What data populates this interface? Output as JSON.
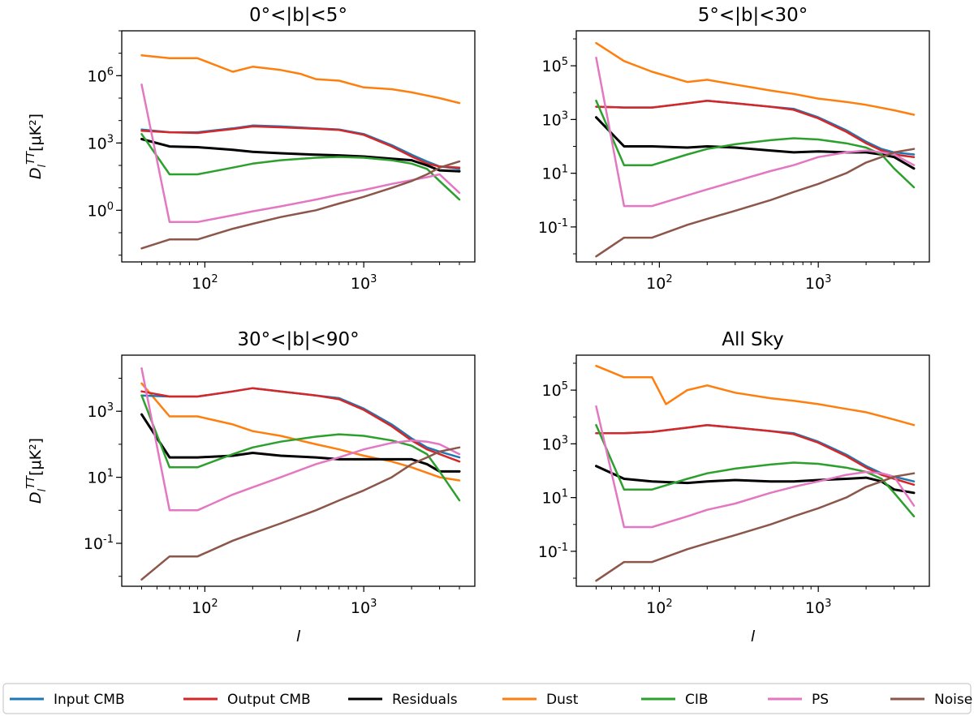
{
  "legend": [
    {
      "label": "Input CMB",
      "color": "#1f77b4"
    },
    {
      "label": "Output CMB",
      "color": "#d62728"
    },
    {
      "label": "Residuals",
      "color": "#000000"
    },
    {
      "label": "Dust",
      "color": "#ff7f0e"
    },
    {
      "label": "CIB",
      "color": "#2ca02c"
    },
    {
      "label": "PS",
      "color": "#e377c2"
    },
    {
      "label": "Noise",
      "color": "#8c564b"
    }
  ],
  "chart_data": [
    {
      "type": "line",
      "title": "0$^\\circ$<|b|<5$^\\circ$",
      "title_display": "0°<|b|<5°",
      "xlabel": "",
      "ylabel": "D_l^TT [μK²]",
      "xscale": "log",
      "yscale": "log",
      "xlim": [
        30,
        5000
      ],
      "ylim": [
        0.005,
        100000000
      ],
      "xticks": [
        {
          "v": 100,
          "label": "10^2"
        },
        {
          "v": 1000,
          "label": "10^3"
        }
      ],
      "yticks": [
        {
          "v": 1,
          "label": "10^0"
        },
        {
          "v": 1000,
          "label": "10^3"
        },
        {
          "v": 1000000,
          "label": "10^6"
        }
      ],
      "series": [
        {
          "name": "Dust",
          "x": [
            40,
            60,
            90,
            150,
            200,
            300,
            400,
            500,
            700,
            1000,
            1500,
            2000,
            2500,
            3000,
            4000
          ],
          "y": [
            8000000,
            6000000,
            6000000,
            1500000,
            2500000,
            1800000,
            1200000,
            700000,
            600000,
            300000,
            250000,
            180000,
            130000,
            100000,
            60000
          ]
        },
        {
          "name": "Input CMB",
          "x": [
            40,
            60,
            90,
            150,
            200,
            300,
            500,
            700,
            1000,
            1500,
            2000,
            2500,
            3000,
            4000
          ],
          "y": [
            4000,
            3000,
            3000,
            4500,
            6000,
            5500,
            4500,
            4000,
            2500,
            800,
            300,
            150,
            90,
            70
          ]
        },
        {
          "name": "Output CMB",
          "x": [
            40,
            60,
            90,
            150,
            200,
            300,
            500,
            700,
            1000,
            1500,
            2000,
            2500,
            3000,
            4000
          ],
          "y": [
            3500,
            3000,
            2800,
            4200,
            5500,
            5000,
            4300,
            3800,
            2300,
            700,
            250,
            120,
            90,
            80
          ]
        },
        {
          "name": "Residuals",
          "x": [
            40,
            60,
            90,
            150,
            200,
            300,
            500,
            700,
            1000,
            1500,
            2000,
            2500,
            3000,
            4000
          ],
          "y": [
            1500,
            700,
            650,
            500,
            400,
            350,
            300,
            280,
            250,
            200,
            170,
            100,
            60,
            55
          ]
        },
        {
          "name": "CIB",
          "x": [
            40,
            60,
            90,
            150,
            200,
            300,
            500,
            700,
            1000,
            1500,
            2000,
            2500,
            3000,
            4000
          ],
          "y": [
            2500,
            40,
            40,
            80,
            120,
            170,
            220,
            240,
            220,
            170,
            120,
            70,
            20,
            3
          ]
        },
        {
          "name": "PS",
          "x": [
            40,
            60,
            90,
            150,
            200,
            300,
            500,
            700,
            1000,
            1500,
            2000,
            2500,
            3000,
            4000
          ],
          "y": [
            400000,
            0.3,
            0.3,
            0.6,
            0.9,
            1.5,
            3,
            5,
            8,
            15,
            22,
            30,
            40,
            6
          ]
        },
        {
          "name": "Noise",
          "x": [
            40,
            60,
            90,
            150,
            200,
            300,
            500,
            700,
            1000,
            1500,
            2000,
            2500,
            3000,
            4000
          ],
          "y": [
            0.02,
            0.05,
            0.05,
            0.15,
            0.25,
            0.5,
            1,
            2,
            4,
            10,
            20,
            40,
            80,
            150
          ]
        }
      ]
    },
    {
      "type": "line",
      "title": "5$^\\circ$<|b|<30$^\\circ$",
      "title_display": "5°<|b|<30°",
      "xlabel": "",
      "ylabel": "",
      "xscale": "log",
      "yscale": "log",
      "xlim": [
        30,
        5000
      ],
      "ylim": [
        0.005,
        2000000
      ],
      "xticks": [
        {
          "v": 100,
          "label": "10^2"
        },
        {
          "v": 1000,
          "label": "10^3"
        }
      ],
      "yticks": [
        {
          "v": 0.1,
          "label": "10^-1"
        },
        {
          "v": 10,
          "label": "10^1"
        },
        {
          "v": 1000,
          "label": "10^3"
        },
        {
          "v": 100000,
          "label": "10^5"
        }
      ],
      "series": [
        {
          "name": "Dust",
          "x": [
            40,
            60,
            90,
            150,
            200,
            300,
            400,
            500,
            700,
            1000,
            1500,
            2000,
            3000,
            4000
          ],
          "y": [
            700000,
            150000,
            60000,
            25000,
            30000,
            20000,
            15000,
            12000,
            9000,
            6000,
            4500,
            3500,
            2200,
            1500
          ]
        },
        {
          "name": "Input CMB",
          "x": [
            40,
            60,
            90,
            150,
            200,
            300,
            500,
            700,
            1000,
            1500,
            2000,
            2500,
            3000,
            4000
          ],
          "y": [
            3000,
            2800,
            2800,
            4000,
            5000,
            4000,
            3000,
            2500,
            1200,
            400,
            150,
            80,
            60,
            50
          ]
        },
        {
          "name": "Output CMB",
          "x": [
            40,
            60,
            90,
            150,
            200,
            300,
            500,
            700,
            1000,
            1500,
            2000,
            2500,
            3000,
            4000
          ],
          "y": [
            3000,
            2800,
            2800,
            4000,
            5000,
            4000,
            3000,
            2300,
            1100,
            350,
            130,
            70,
            50,
            40
          ]
        },
        {
          "name": "Residuals",
          "x": [
            40,
            60,
            90,
            150,
            200,
            300,
            500,
            700,
            1000,
            1500,
            2000,
            2500,
            3000,
            4000
          ],
          "y": [
            1200,
            100,
            100,
            90,
            100,
            90,
            70,
            60,
            65,
            60,
            60,
            50,
            40,
            15
          ]
        },
        {
          "name": "CIB",
          "x": [
            40,
            60,
            90,
            150,
            200,
            300,
            500,
            700,
            1000,
            1500,
            2000,
            2500,
            3000,
            4000
          ],
          "y": [
            5000,
            20,
            20,
            50,
            80,
            120,
            170,
            200,
            180,
            130,
            90,
            50,
            15,
            3
          ]
        },
        {
          "name": "PS",
          "x": [
            40,
            60,
            90,
            150,
            200,
            300,
            500,
            700,
            1000,
            1500,
            2000,
            2500,
            3000,
            4000
          ],
          "y": [
            200000,
            0.6,
            0.6,
            1.5,
            2.5,
            5,
            12,
            20,
            40,
            60,
            70,
            60,
            50,
            20
          ]
        },
        {
          "name": "Noise",
          "x": [
            40,
            60,
            90,
            150,
            200,
            300,
            500,
            700,
            1000,
            1500,
            2000,
            2500,
            3000,
            4000
          ],
          "y": [
            0.008,
            0.04,
            0.04,
            0.12,
            0.2,
            0.4,
            1,
            2,
            4,
            10,
            25,
            40,
            60,
            80
          ]
        }
      ]
    },
    {
      "type": "line",
      "title": "30$^\\circ$<|b|<90$^\\circ$",
      "title_display": "30°<|b|<90°",
      "xlabel": "l",
      "ylabel": "D_l^TT [μK²]",
      "xscale": "log",
      "yscale": "log",
      "xlim": [
        30,
        5000
      ],
      "ylim": [
        0.005,
        50000
      ],
      "xticks": [
        {
          "v": 100,
          "label": "10^2"
        },
        {
          "v": 1000,
          "label": "10^3"
        }
      ],
      "yticks": [
        {
          "v": 0.1,
          "label": "10^-1"
        },
        {
          "v": 10,
          "label": "10^1"
        },
        {
          "v": 1000,
          "label": "10^3"
        }
      ],
      "series": [
        {
          "name": "Dust",
          "x": [
            40,
            60,
            90,
            150,
            200,
            300,
            500,
            700,
            1000,
            1500,
            2000,
            3000,
            4000
          ],
          "y": [
            7000,
            700,
            700,
            400,
            250,
            180,
            100,
            70,
            45,
            30,
            20,
            10,
            8
          ]
        },
        {
          "name": "Input CMB",
          "x": [
            40,
            60,
            90,
            150,
            200,
            300,
            500,
            700,
            1000,
            1500,
            2000,
            2500,
            3000,
            4000
          ],
          "y": [
            3000,
            2800,
            2800,
            4000,
            5000,
            4000,
            3000,
            2500,
            1200,
            400,
            150,
            80,
            60,
            40
          ]
        },
        {
          "name": "Output CMB",
          "x": [
            40,
            60,
            90,
            150,
            200,
            300,
            500,
            700,
            1000,
            1500,
            2000,
            2500,
            3000,
            4000
          ],
          "y": [
            4000,
            2800,
            2800,
            4000,
            5000,
            4000,
            3000,
            2300,
            1100,
            350,
            130,
            70,
            50,
            30
          ]
        },
        {
          "name": "Residuals",
          "x": [
            40,
            60,
            90,
            150,
            200,
            300,
            500,
            700,
            1000,
            1500,
            2000,
            2500,
            3000,
            4000
          ],
          "y": [
            800,
            40,
            40,
            45,
            55,
            45,
            40,
            35,
            35,
            35,
            35,
            25,
            15,
            15
          ]
        },
        {
          "name": "CIB",
          "x": [
            40,
            60,
            90,
            150,
            200,
            300,
            500,
            700,
            1000,
            1500,
            2000,
            2500,
            3000,
            4000
          ],
          "y": [
            3000,
            20,
            20,
            50,
            80,
            120,
            170,
            200,
            180,
            130,
            90,
            50,
            15,
            2
          ]
        },
        {
          "name": "PS",
          "x": [
            40,
            60,
            90,
            150,
            200,
            300,
            500,
            700,
            1000,
            1500,
            2000,
            2500,
            3000,
            4000
          ],
          "y": [
            20000,
            1,
            1,
            3,
            5,
            10,
            25,
            40,
            70,
            110,
            130,
            120,
            100,
            50
          ]
        },
        {
          "name": "Noise",
          "x": [
            40,
            60,
            90,
            150,
            200,
            300,
            500,
            700,
            1000,
            1500,
            2000,
            2500,
            3000,
            4000
          ],
          "y": [
            0.008,
            0.04,
            0.04,
            0.12,
            0.2,
            0.4,
            1,
            2,
            4,
            10,
            25,
            40,
            60,
            80
          ]
        }
      ]
    },
    {
      "type": "line",
      "title": "All Sky",
      "title_display": "All Sky",
      "xlabel": "l",
      "ylabel": "",
      "xscale": "log",
      "yscale": "log",
      "xlim": [
        30,
        5000
      ],
      "ylim": [
        0.005,
        2000000
      ],
      "xticks": [
        {
          "v": 100,
          "label": "10^2"
        },
        {
          "v": 1000,
          "label": "10^3"
        }
      ],
      "yticks": [
        {
          "v": 0.1,
          "label": "10^-1"
        },
        {
          "v": 10,
          "label": "10^1"
        },
        {
          "v": 1000,
          "label": "10^3"
        },
        {
          "v": 100000,
          "label": "10^5"
        }
      ],
      "series": [
        {
          "name": "Dust",
          "x": [
            40,
            60,
            90,
            110,
            150,
            200,
            300,
            500,
            700,
            1000,
            1500,
            2000,
            3000,
            4000
          ],
          "y": [
            800000,
            300000,
            300000,
            30000,
            100000,
            150000,
            80000,
            50000,
            40000,
            30000,
            20000,
            15000,
            8000,
            5000
          ]
        },
        {
          "name": "Input CMB",
          "x": [
            40,
            60,
            90,
            150,
            200,
            300,
            500,
            700,
            1000,
            1500,
            2000,
            2500,
            3000,
            4000
          ],
          "y": [
            2500,
            2500,
            2800,
            4000,
            5000,
            4000,
            3000,
            2500,
            1200,
            400,
            150,
            80,
            60,
            40
          ]
        },
        {
          "name": "Output CMB",
          "x": [
            40,
            60,
            90,
            150,
            200,
            300,
            500,
            700,
            1000,
            1500,
            2000,
            2500,
            3000,
            4000
          ],
          "y": [
            2500,
            2500,
            2800,
            4000,
            5000,
            4000,
            3000,
            2300,
            1100,
            350,
            130,
            70,
            50,
            30
          ]
        },
        {
          "name": "Residuals",
          "x": [
            40,
            60,
            90,
            150,
            200,
            300,
            500,
            700,
            1000,
            1500,
            2000,
            2500,
            3000,
            4000
          ],
          "y": [
            150,
            50,
            40,
            35,
            40,
            45,
            40,
            40,
            45,
            50,
            55,
            40,
            20,
            15
          ]
        },
        {
          "name": "CIB",
          "x": [
            40,
            60,
            90,
            150,
            200,
            300,
            500,
            700,
            1000,
            1500,
            2000,
            2500,
            3000,
            4000
          ],
          "y": [
            5000,
            20,
            20,
            50,
            80,
            120,
            170,
            200,
            180,
            130,
            90,
            50,
            15,
            2
          ]
        },
        {
          "name": "PS",
          "x": [
            40,
            60,
            90,
            150,
            200,
            300,
            500,
            700,
            1000,
            1500,
            2000,
            2500,
            3000,
            4000
          ],
          "y": [
            25000,
            0.8,
            0.8,
            2,
            3.5,
            6,
            15,
            25,
            40,
            70,
            90,
            80,
            60,
            5
          ]
        },
        {
          "name": "Noise",
          "x": [
            40,
            60,
            90,
            150,
            200,
            300,
            500,
            700,
            1000,
            1500,
            2000,
            2500,
            3000,
            4000
          ],
          "y": [
            0.008,
            0.04,
            0.04,
            0.12,
            0.2,
            0.4,
            1,
            2,
            4,
            10,
            25,
            40,
            60,
            80
          ]
        }
      ]
    }
  ]
}
